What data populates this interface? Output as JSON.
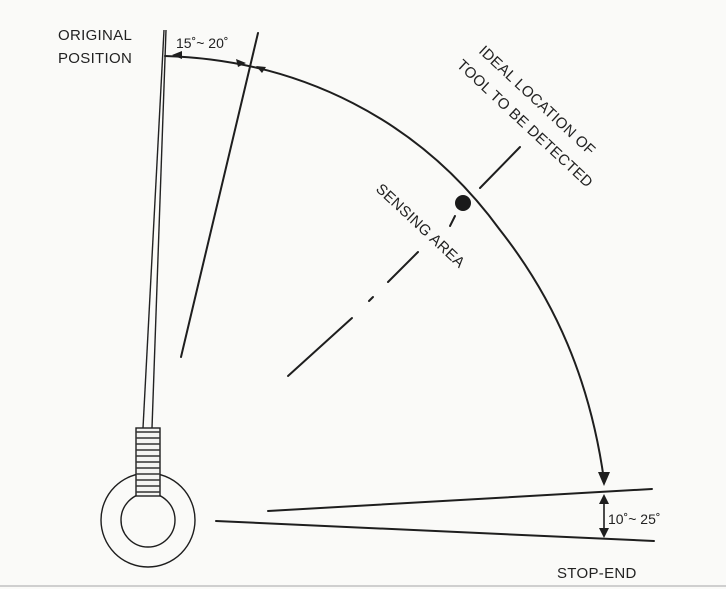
{
  "labels": {
    "original_line1": "ORIGINAL",
    "original_line2": "POSITION",
    "angle_top": "15˚~ 20˚",
    "ideal_line1": "IDEAL LOCATION  OF",
    "ideal_line2": "TOOL TO BE DETECTED",
    "sensing_area": "SENSING AREA",
    "angle_bottom": "10˚~ 25˚",
    "stop_end": "STOP-END"
  }
}
